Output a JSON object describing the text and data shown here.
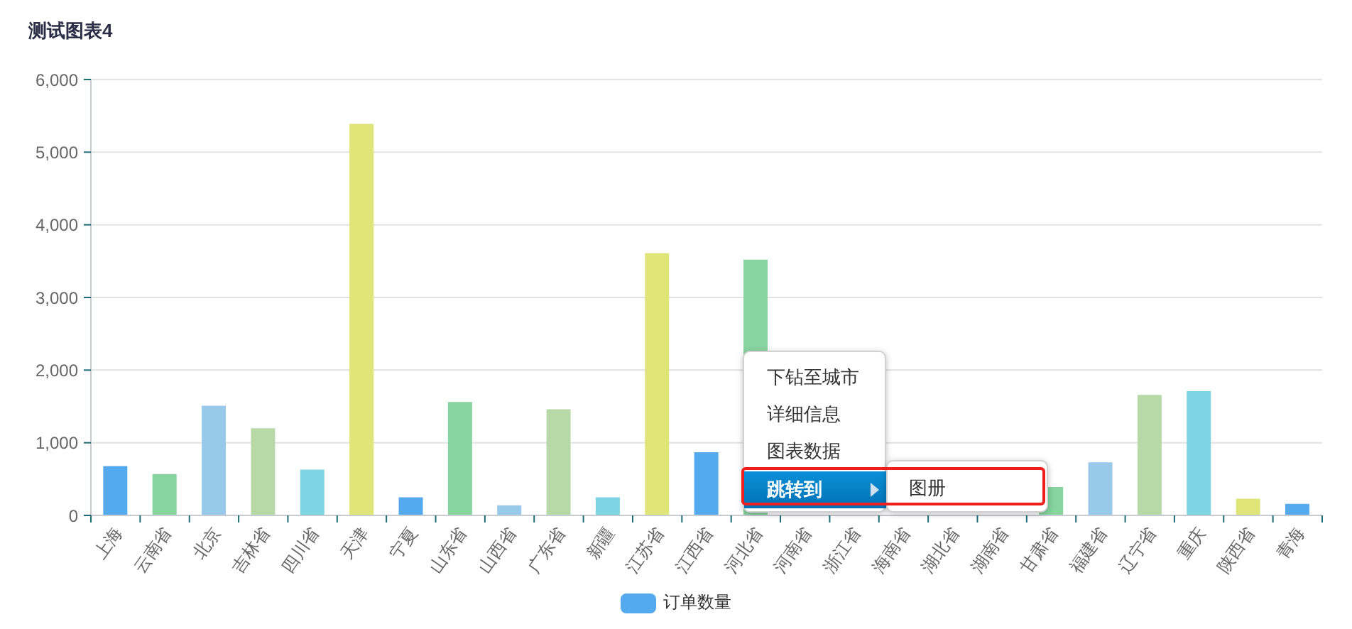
{
  "chart_data": {
    "type": "bar",
    "title": "测试图表4",
    "categories": [
      "上海",
      "云南省",
      "北京",
      "吉林省",
      "四川省",
      "天津",
      "宁夏",
      "山东省",
      "山西省",
      "广东省",
      "新疆",
      "江苏省",
      "江西省",
      "河北省",
      "河南省",
      "浙江省",
      "海南省",
      "湖北省",
      "湖南省",
      "甘肃省",
      "福建省",
      "辽宁省",
      "重庆",
      "陕西省",
      "青海"
    ],
    "series": [
      {
        "name": "订单数量",
        "color": "#55aaee",
        "colors": [
          "#55aaee",
          "#87d4a0",
          "#99c9ea",
          "#b7d9a8",
          "#7ed4e2",
          "#e0e57a",
          "#55aaee",
          "#87d4a0",
          "#99c9ea",
          "#b7d9a8",
          "#7ed4e2",
          "#e0e57a",
          "#55aaee",
          "#87d4a0",
          "#99c9ea",
          "#b7d9a8",
          "#7ed4e2",
          "#e0e57a",
          "#55aaee",
          "#87d4a0",
          "#99c9ea",
          "#b7d9a8",
          "#7ed4e2",
          "#e0e57a",
          "#55aaee"
        ],
        "values": [
          680,
          570,
          1510,
          1200,
          630,
          5390,
          250,
          1560,
          140,
          1460,
          250,
          3610,
          870,
          3520,
          null,
          null,
          null,
          null,
          null,
          390,
          730,
          1660,
          1710,
          230,
          160
        ]
      }
    ],
    "ylim": [
      0,
      6000
    ],
    "yticks": [
      0,
      {
        "value": 1000,
        "label": "1,000"
      },
      {
        "value": 2000,
        "label": "2,000"
      },
      {
        "value": 3000,
        "label": "3,000"
      },
      {
        "value": 4000,
        "label": "4,000"
      },
      {
        "value": 5000,
        "label": "5,000"
      },
      {
        "value": 6000,
        "label": "6,000"
      }
    ],
    "grid": "y",
    "legend": "bottom",
    "annotations": [
      "下钻至城市",
      "详细信息",
      "图表数据",
      "跳转到",
      "图册"
    ]
  }
}
